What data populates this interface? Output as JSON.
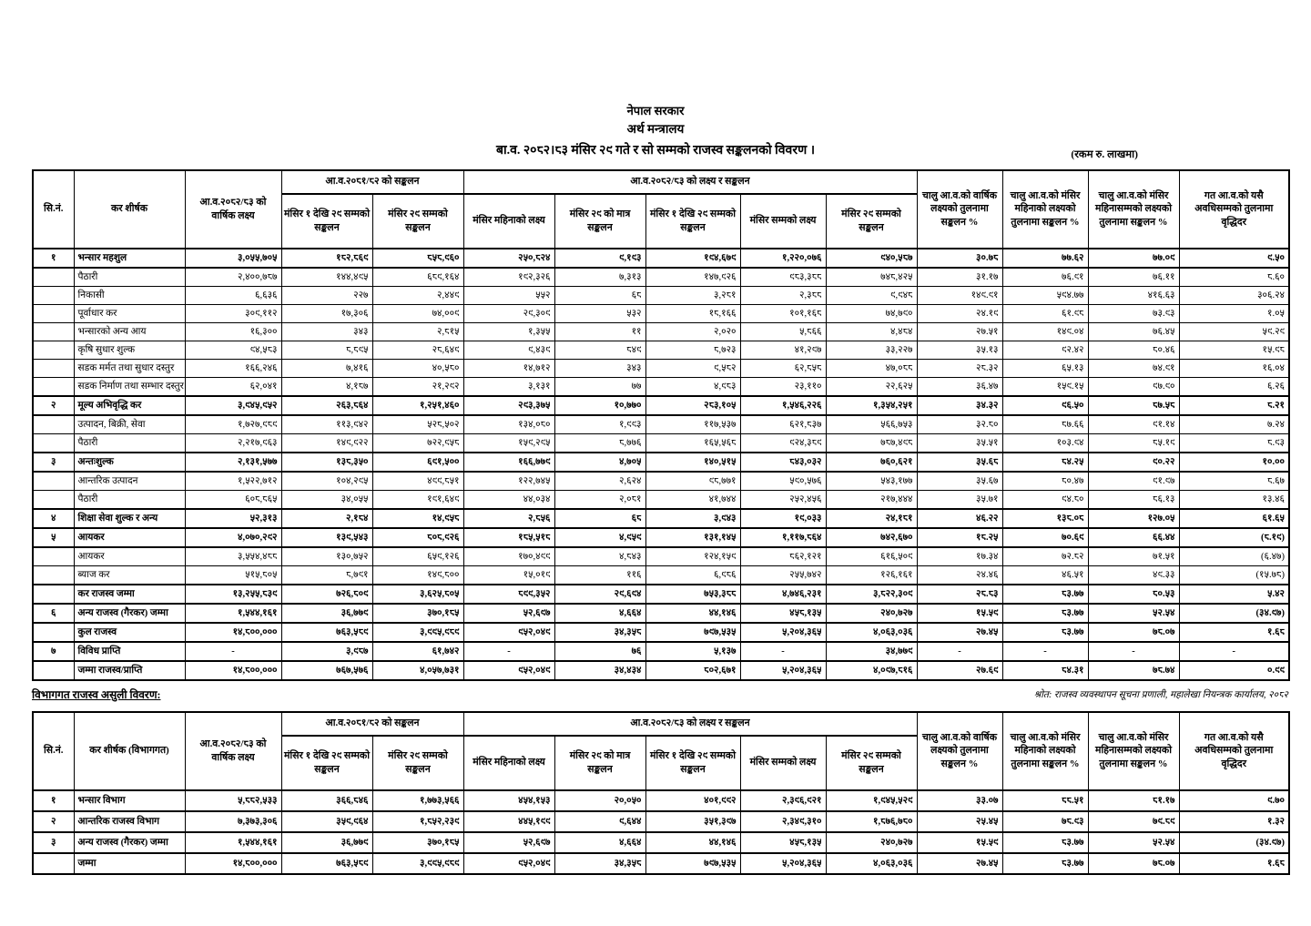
{
  "page": {
    "government": "नेपाल सरकार",
    "ministry": "अर्थ मन्त्रालय",
    "title": "बा.व. २०८२।८३ मंसिर २९ गते र सो सम्मको राजस्व सङ्कलनको विवरण ।",
    "unit_note": "(रकम रु. लाखमा)"
  },
  "columns": {
    "sn": "सि.नं.",
    "heading": "कर शीर्षक",
    "annual_target": "आ.व.२०८२/८३ को वार्षिक लक्ष्य",
    "prev_group": "आ.व.२०८१/८२ को सङ्कलन",
    "prev_1_29": "मंसिर १ देखि २९ सम्मको सङ्कलन",
    "prev_till_29": "मंसिर २९ सम्मको सङ्कलन",
    "cur_group": "आ.व.२०८२/८३ को लक्ष्य र सङ्कलन",
    "cur_month_target": "मंसिर महिनाको लक्ष्य",
    "cur_29_only": "मंसिर २९ को मात्र सङ्कलन",
    "cur_1_29": "मंसिर १ देखि २९ सम्मको सङ्कलन",
    "cur_till_month_target": "मंसिर सम्मको लक्ष्य",
    "cur_till_29": "मंसिर २९ सम्मको सङ्कलन",
    "pct_annual": "चालु आ.व.को वार्षिक लक्ष्यको तुलनामा सङ्कलन %",
    "pct_month": "चालु आ.व.को मंसिर महिनाको लक्ष्यको तुलनामा सङ्कलन %",
    "pct_till_month": "चालु आ.व.को मंसिर महिनासम्मको लक्ष्यको तुलनामा सङ्कलन %",
    "growth": "गत आ.व.को यसै अवधिसम्मको तुलनामा वृद्धिदर"
  },
  "main_table": {
    "rows": [
      {
        "sn": "१",
        "label": "भन्सार महशुल",
        "bold": true,
        "values": [
          "३,०५५,७०५",
          "१८२,८६९",
          "८५८,९६०",
          "२५०,८२४",
          "९,१९३",
          "१९४,६७९",
          "१,२२०,०७६",
          "९४०,५८७",
          "३०.७८",
          "७७.६२",
          "७७.०९",
          "९.५०"
        ]
      },
      {
        "sn": "",
        "label": "पैठारी",
        "bold": false,
        "values": [
          "२,४००,७८७",
          "१४४,४९५",
          "६८९,१६४",
          "१९२,३२६",
          "७,३१३",
          "१४७,९२६",
          "९८३,३८८",
          "७४८,४२५",
          "३१.१७",
          "७६.९१",
          "७६.११",
          "८.६०"
        ]
      },
      {
        "sn": "",
        "label": "निकासी",
        "bold": false,
        "values": [
          "६,६३६",
          "२२७",
          "२,४४९",
          "५५२",
          "६८",
          "३,२८१",
          "२,३८८",
          "९,९४८",
          "१४९.९१",
          "५९४.७७",
          "४१६.६३",
          "३०६.२४"
        ]
      },
      {
        "sn": "",
        "label": "पूर्वाधार कर",
        "bold": false,
        "values": [
          "३०९,११२",
          "१७,३०६",
          "७४,००९",
          "२९,३०९",
          "५३२",
          "१८,१६६",
          "१०१,१६८",
          "७४,७९०",
          "२४.१९",
          "६१.९८",
          "७३.९३",
          "१.०५"
        ]
      },
      {
        "sn": "",
        "label": "भन्सारको अन्य आय",
        "bold": false,
        "values": [
          "१६,३००",
          "३४३",
          "२,८१५",
          "१,३५५",
          "११",
          "२,०२०",
          "५,८६६",
          "४,४८४",
          "२७.५१",
          "१४९.०४",
          "७६.४५",
          "५९.२९"
        ]
      },
      {
        "sn": "",
        "label": "कृषि सुधार शुल्क",
        "bold": false,
        "values": [
          "९४,५८३",
          "८,८९५",
          "२८,६४९",
          "९,४३९",
          "८४९",
          "८,७२३",
          "४१,२९७",
          "३३,२२७",
          "३५.१३",
          "९२.४२",
          "८०.४६",
          "१५.९८"
        ]
      },
      {
        "sn": "",
        "label": "सडक मर्मत तथा सुधार दस्तुर",
        "bold": false,
        "values": [
          "१६६,२४६",
          "७,४१६",
          "४०,५८०",
          "१४,७१२",
          "३४३",
          "९,५८२",
          "६२,८५८",
          "४७,०८८",
          "२८.३२",
          "६५.१३",
          "७४.९१",
          "१६.०४"
        ]
      },
      {
        "sn": "",
        "label": "सडक निर्माण तथा सम्भार दस्तुर",
        "bold": false,
        "values": [
          "६२,०४१",
          "४,१८७",
          "२१,२९२",
          "३,१३१",
          "७७",
          "४,९८३",
          "२३,११०",
          "२२,६२५",
          "३६.४७",
          "१५९.१५",
          "९७.९०",
          "६.२६"
        ]
      },
      {
        "sn": "२",
        "label": "मूल्य अभिवृद्धि कर",
        "bold": true,
        "values": [
          "३,९४५,९५२",
          "२६३,८६४",
          "१,२५१,४६०",
          "२९३,३७५",
          "१०,७७०",
          "२८३,१०५",
          "१,५४६,२२६",
          "१,३५४,२५१",
          "३४.३२",
          "९६.५०",
          "८७.५८",
          "८.२१"
        ]
      },
      {
        "sn": "",
        "label": "उत्पादन, बिक्री, सेवा",
        "bold": false,
        "values": [
          "१,७२७,९८९",
          "११३,९४२",
          "५२८,५०२",
          "१३४,०८०",
          "१,९९३",
          "११७,५३७",
          "६२१,८३७",
          "५६६,७५३",
          "३२.८०",
          "८७.६६",
          "९१.१४",
          "७.२४"
        ]
      },
      {
        "sn": "",
        "label": "पैठारी",
        "bold": false,
        "values": [
          "२,२१७,९६३",
          "१४९,९२२",
          "७२२,९५८",
          "१५९,२९५",
          "८,७७६",
          "१६५,५६८",
          "९२४,३८९",
          "७८७,४९८",
          "३५.५१",
          "१०३.९४",
          "८५.१९",
          "८.९३"
        ]
      },
      {
        "sn": "३",
        "label": "अन्तःशुल्क",
        "bold": true,
        "values": [
          "२,१३१,५७७",
          "१३८,३५०",
          "६९१,५००",
          "१६६,७७९",
          "४,७०५",
          "१४०,५१५",
          "८४३,०३२",
          "७६०,६२१",
          "३५.६८",
          "८४.२५",
          "९०.२२",
          "१०.००"
        ]
      },
      {
        "sn": "",
        "label": "आन्तरिक उत्पादन",
        "bold": false,
        "values": [
          "१,५२२,७१२",
          "१०४,२९५",
          "४९९,८५१",
          "१२२,७४५",
          "२,६२४",
          "९८,७७१",
          "५९०,५७६",
          "५४३,१७७",
          "३५.६७",
          "८०.४७",
          "९१.९७",
          "८.६७"
        ]
      },
      {
        "sn": "",
        "label": "पैठारी",
        "bold": false,
        "values": [
          "६०८,८६५",
          "३४,०५५",
          "१९१,६४९",
          "४४,०३४",
          "२,०८१",
          "४१,७४४",
          "२५२,४५६",
          "२१७,४४४",
          "३५.७१",
          "९४.८०",
          "८६.१३",
          "१३.४६"
        ]
      },
      {
        "sn": "४",
        "label": "शिक्षा सेवा शुल्क र अन्य",
        "bold": true,
        "values": [
          "५२,३१३",
          "२,१८४",
          "१४,९५८",
          "२,८५६",
          "६८",
          "३,९४३",
          "१९,०३३",
          "२४,१८१",
          "४६.२२",
          "१३८.०८",
          "१२७.०५",
          "६१.६५"
        ]
      },
      {
        "sn": "५",
        "label": "आयकर",
        "bold": true,
        "values": [
          "४,०७०,२९२",
          "१३९,५४३",
          "८०८,९२६",
          "१८५,५१८",
          "४,९५९",
          "१३१,१४५",
          "१,११७,८६४",
          "७४२,६७०",
          "१८.२५",
          "७०.६९",
          "६६.४४",
          "(८.१९)"
        ]
      },
      {
        "sn": "",
        "label": "आयकर",
        "bold": false,
        "values": [
          "३,५५४,४८८",
          "१३०,७५२",
          "६५९,१२६",
          "१७०,४९९",
          "४,८४३",
          "१२४,१५९",
          "८६२,१२१",
          "६१६,५०९",
          "१७.३४",
          "७२.८२",
          "७१.५१",
          "(६.४७)"
        ]
      },
      {
        "sn": "",
        "label": "ब्याज कर",
        "bold": false,
        "values": [
          "५१५,८०५",
          "८,७९१",
          "१४९,८००",
          "१५,०१९",
          "११६",
          "६,९८६",
          "२५५,७४२",
          "१२६,१६१",
          "२४.४६",
          "४६.५१",
          "४९.३३",
          "(१५.७८)"
        ]
      },
      {
        "sn": "",
        "label": "कर राजस्व जम्मा",
        "bold": true,
        "values": [
          "१३,२५५,८३९",
          "७२६,८०९",
          "३,६२५,८०५",
          "८९९,३५२",
          "२९,६९४",
          "७५३,३८८",
          "४,७४६,२३१",
          "३,८२२,३०९",
          "२८.८३",
          "८३.७७",
          "८०.५३",
          "५.४२"
        ]
      },
      {
        "sn": "६",
        "label": "अन्य राजस्व (गैरकर) जम्मा",
        "bold": true,
        "values": [
          "१,५४४,१६१",
          "३६,७७९",
          "३७०,१८५",
          "५२,६९७",
          "४,६६४",
          "४४,१४६",
          "४५८,१३५",
          "२४०,७२७",
          "१५.५९",
          "८३.७७",
          "५२.५४",
          "(३४.९७)"
        ]
      },
      {
        "sn": "",
        "label": "कुल राजस्व",
        "bold": true,
        "values": [
          "१४,८००,०००",
          "७६३,५८९",
          "३,९९५,९८९",
          "९५२,०४९",
          "३४,३५८",
          "७९७,५३५",
          "५,२०४,३६५",
          "४,०६३,०३६",
          "२७.४५",
          "८३.७७",
          "७८.०७",
          "१.६८"
        ]
      },
      {
        "sn": "७",
        "label": "विविध प्राप्ति",
        "bold": true,
        "values": [
          "-",
          "३,९८७",
          "६१,७४२",
          "-",
          "७६",
          "५,१३७",
          "-",
          "३४,७७९",
          "-",
          "-",
          "-",
          "-"
        ]
      },
      {
        "sn": "",
        "label": "जम्मा राजस्व/प्राप्ति",
        "bold": true,
        "values": [
          "१४,८००,०००",
          "७६७,५७६",
          "४,०५७,७३१",
          "९५२,०४९",
          "३४,४३४",
          "८०२,६७१",
          "५,२०४,३६५",
          "४,०९७,८१६",
          "२७.६९",
          "८४.३१",
          "७८.७४",
          "०.९९"
        ]
      }
    ]
  },
  "section2": {
    "title": "विभागगत राजस्व असुली विवरण:",
    "source": "श्रोत: राजस्व व्यवस्थापन सूचना प्रणाली, महालेखा नियन्त्रक कार्यालय, २०८२",
    "heading_col": "कर शीर्षक (विभागगत)",
    "rows": [
      {
        "sn": "१",
        "label": "भन्सार विभाग",
        "bold": true,
        "values": [
          "५,८८२,५३३",
          "३६६,८४६",
          "१,७७३,५६६",
          "४५४,१५३",
          "२०,०५०",
          "४०१,९९२",
          "२,३९६,९२१",
          "१,९४५,५२९",
          "३३.०७",
          "८८.५१",
          "८१.१७",
          "९.७०"
        ]
      },
      {
        "sn": "२",
        "label": "आन्तरिक राजस्व विभाग",
        "bold": true,
        "values": [
          "७,३७३,३०६",
          "३५९,९६४",
          "१,८५२,२३९",
          "४४५,१९९",
          "९,६४४",
          "३५१,३९७",
          "२,३४९,३१०",
          "१,८७६,७८०",
          "२५.४५",
          "७८.९३",
          "७९.८९",
          "१.३२"
        ]
      },
      {
        "sn": "३",
        "label": "अन्य राजस्व (गैरकर) जम्मा",
        "bold": true,
        "values": [
          "१,५४४,१६१",
          "३६,७७९",
          "३७०,१८५",
          "५२,६९७",
          "४,६६४",
          "४४,१४६",
          "४५८,१३५",
          "२४०,७२७",
          "१५.५९",
          "८३.७७",
          "५२.५४",
          "(३४.९७)"
        ]
      },
      {
        "sn": "",
        "label": "जम्मा",
        "bold": true,
        "values": [
          "१४,८००,०००",
          "७६३,५८९",
          "३,९९५,९८९",
          "९५२,०४९",
          "३४,३५८",
          "७९७,५३५",
          "५,२०४,३६५",
          "४,०६३,०३६",
          "२७.४५",
          "८३.७७",
          "७८.०७",
          "१.६८"
        ]
      }
    ]
  }
}
